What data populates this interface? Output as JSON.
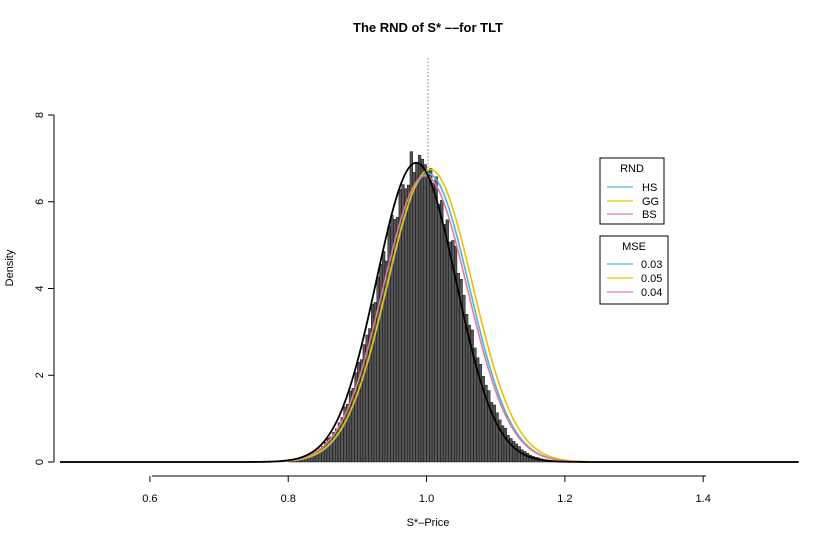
{
  "chart_data": {
    "type": "histogram",
    "title": "The RND of S* ––for TLT",
    "xlabel": "S*–Price",
    "ylabel": "Density",
    "xlim": [
      0.47,
      1.54
    ],
    "ylim": [
      0,
      8
    ],
    "xticks": [
      "0.6",
      "0.8",
      "1.0",
      "1.2",
      "1.4"
    ],
    "xtick_values": [
      0.6,
      0.8,
      1.0,
      1.2,
      1.4
    ],
    "yticks": [
      "0",
      "2",
      "4",
      "6",
      "8"
    ],
    "ytick_values": [
      0,
      2,
      4,
      6,
      8
    ],
    "reference_line_x": 1.0,
    "histogram": {
      "bin_width": 0.004,
      "bin_start": 0.8,
      "bin_end": 1.22,
      "center": 0.99,
      "sd": 0.058,
      "peak_density": 6.9,
      "fill": "#555555",
      "edge": "#000000"
    },
    "series": [
      {
        "name": "HS",
        "color": "#4fb3d9",
        "mean": 1.002,
        "sd": 0.06,
        "peak": 6.65
      },
      {
        "name": "GG",
        "color": "#e6c300",
        "mean": 1.005,
        "sd": 0.0615,
        "peak": 6.75
      },
      {
        "name": "BS",
        "color": "#e07aa0",
        "mean": 0.998,
        "sd": 0.061,
        "peak": 6.6
      },
      {
        "name": "",
        "color": "#000000",
        "mean": 0.985,
        "sd": 0.0575,
        "peak": 6.9
      }
    ],
    "legend_rnd": {
      "title": "RND",
      "items": [
        {
          "label": "HS",
          "color": "#4fb3d9"
        },
        {
          "label": "GG",
          "color": "#e6c300"
        },
        {
          "label": "BS",
          "color": "#e07aa0"
        }
      ]
    },
    "legend_mse": {
      "title": "MSE",
      "items": [
        {
          "label": "0.03",
          "color": "#4fb3d9"
        },
        {
          "label": "0.05",
          "color": "#e6c300"
        },
        {
          "label": "0.04",
          "color": "#e07aa0"
        }
      ]
    },
    "legend_placement": "right"
  }
}
